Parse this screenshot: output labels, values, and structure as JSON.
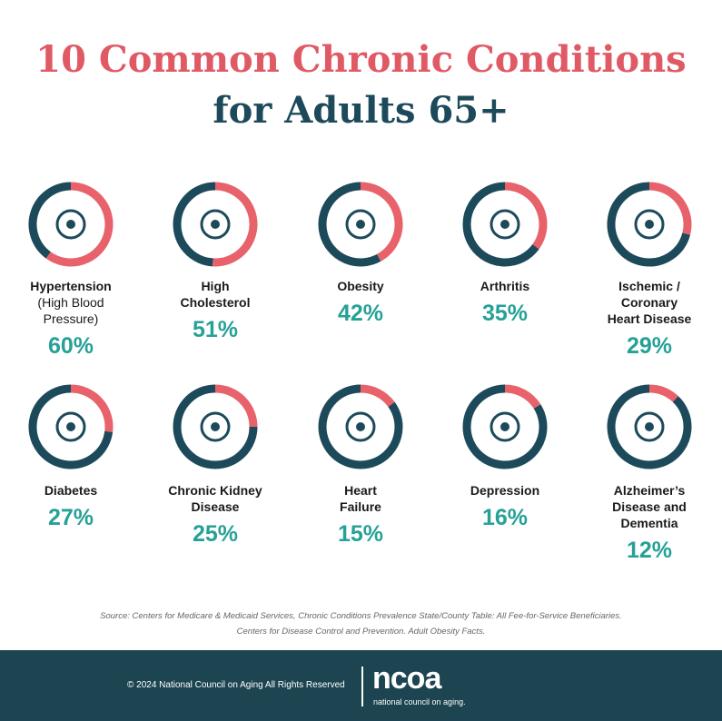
{
  "title": {
    "line1": "10 Common Chronic Conditions",
    "line2": "for Adults 65+"
  },
  "chart_data": {
    "type": "ring-grid",
    "categories": [
      [
        "Hypertension",
        "(High Blood Pressure)"
      ],
      [
        "High",
        "Cholesterol"
      ],
      [
        "Obesity"
      ],
      [
        "Arthritis"
      ],
      [
        "Ischemic /",
        "Coronary",
        "Heart Disease"
      ],
      [
        "Diabetes"
      ],
      [
        "Chronic Kidney",
        "Disease"
      ],
      [
        "Heart",
        "Failure"
      ],
      [
        "Depression"
      ],
      [
        "Alzheimer’s",
        "Disease and",
        "Dementia"
      ]
    ],
    "values": [
      60,
      51,
      42,
      35,
      29,
      27,
      25,
      15,
      16,
      12
    ],
    "value_labels": [
      "60%",
      "51%",
      "42%",
      "35%",
      "29%",
      "27%",
      "25%",
      "15%",
      "16%",
      "12%"
    ],
    "ylim": [
      0,
      100
    ],
    "color": "#e8626b",
    "remainder_color": "#1d4a5a",
    "label_color": "#26a197"
  },
  "source": [
    "Source: Centers for Medicare & Medicaid Services, Chronic Conditions Prevalence State/County Table: All Fee-for-Service Beneficiaries.",
    "Centers for Disease Control and Prevention. Adult Obesity Facts."
  ],
  "footer": {
    "copyright": "© 2024 National Council on Aging All Rights Reserved",
    "logo": "ncoa",
    "tagline": "national council on aging."
  }
}
